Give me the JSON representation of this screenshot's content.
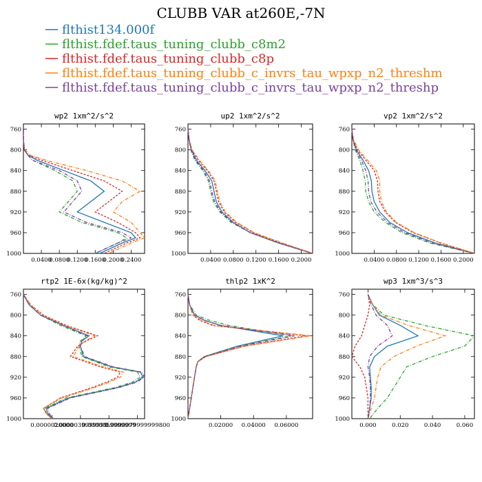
{
  "figure": {
    "title": "CLUBB VAR at260E,-7N"
  },
  "legend": [
    {
      "label": "flthist134.000f",
      "color": "#1f77b4"
    },
    {
      "label": "flthist.fdef.taus_tuning_clubb_c8m2",
      "color": "#2ca02c"
    },
    {
      "label": "flthist.fdef.taus_tuning_clubb_c8p",
      "color": "#d62728"
    },
    {
      "label": "flthist.fdef.taus_tuning_clubb_c_invrs_tau_wpxp_n2_threshm",
      "color": "#ff7f0e"
    },
    {
      "label": "flthist.fdef.taus_tuning_clubb_c_invrs_tau_wpxp_n2_threshp",
      "color": "#7b3f9e"
    }
  ],
  "chart_data": [
    {
      "type": "line",
      "title": "wp2  1xm^2/s^2",
      "xlim": [
        0,
        0.27
      ],
      "ylim": [
        1000,
        750
      ],
      "y_inverted": true,
      "x_ticks": [
        "0.0400",
        "0.0800",
        "0.1200",
        "0.1600",
        "0.2000",
        "0.2400"
      ],
      "x_tick_values": [
        0.04,
        0.08,
        0.12,
        0.16,
        0.2,
        0.24
      ],
      "y_ticks": [
        "760",
        "800",
        "840",
        "880",
        "920",
        "960",
        "1000"
      ],
      "y": [
        760,
        780,
        800,
        810,
        820,
        840,
        860,
        880,
        900,
        920,
        940,
        960,
        970,
        980,
        1000
      ],
      "series": [
        {
          "legend_index": 0,
          "x": [
            0.0,
            0.0,
            0.002,
            0.01,
            0.03,
            0.09,
            0.15,
            0.18,
            0.15,
            0.12,
            0.18,
            0.24,
            0.25,
            0.22,
            0.17
          ]
        },
        {
          "legend_index": 1,
          "x": [
            0.0,
            0.0,
            0.002,
            0.01,
            0.02,
            0.07,
            0.11,
            0.12,
            0.1,
            0.08,
            0.13,
            0.21,
            0.23,
            0.21,
            0.16
          ]
        },
        {
          "legend_index": 2,
          "x": [
            0.0,
            0.0,
            0.002,
            0.01,
            0.04,
            0.11,
            0.18,
            0.22,
            0.19,
            0.16,
            0.21,
            0.25,
            0.26,
            0.23,
            0.18
          ]
        },
        {
          "legend_index": 3,
          "x": [
            0.0,
            0.0,
            0.003,
            0.015,
            0.05,
            0.14,
            0.22,
            0.26,
            0.22,
            0.2,
            0.24,
            0.26,
            0.27,
            0.24,
            0.19
          ]
        },
        {
          "legend_index": 4,
          "x": [
            0.0,
            0.0,
            0.002,
            0.01,
            0.02,
            0.08,
            0.12,
            0.13,
            0.11,
            0.09,
            0.14,
            0.22,
            0.24,
            0.21,
            0.16
          ]
        }
      ]
    },
    {
      "type": "line",
      "title": "up2  1xm^2/s^2",
      "xlim": [
        0,
        0.22
      ],
      "ylim": [
        1000,
        750
      ],
      "y_inverted": true,
      "x_ticks": [
        "0.0400",
        "0.0800",
        "0.1200",
        "0.1600",
        "0.2000"
      ],
      "x_tick_values": [
        0.04,
        0.08,
        0.12,
        0.16,
        0.2
      ],
      "y_ticks": [
        "760",
        "800",
        "840",
        "880",
        "920",
        "960",
        "1000"
      ],
      "y": [
        760,
        780,
        800,
        820,
        840,
        860,
        880,
        900,
        920,
        940,
        960,
        980,
        1000
      ],
      "series": [
        {
          "legend_index": 0,
          "x": [
            0.0,
            0.002,
            0.006,
            0.015,
            0.03,
            0.042,
            0.046,
            0.05,
            0.06,
            0.08,
            0.11,
            0.16,
            0.22
          ]
        },
        {
          "legend_index": 1,
          "x": [
            0.0,
            0.002,
            0.005,
            0.012,
            0.026,
            0.036,
            0.04,
            0.045,
            0.056,
            0.076,
            0.11,
            0.16,
            0.22
          ]
        },
        {
          "legend_index": 2,
          "x": [
            0.0,
            0.002,
            0.007,
            0.018,
            0.034,
            0.046,
            0.05,
            0.054,
            0.064,
            0.084,
            0.115,
            0.165,
            0.22
          ]
        },
        {
          "legend_index": 3,
          "x": [
            0.0,
            0.002,
            0.007,
            0.02,
            0.036,
            0.048,
            0.052,
            0.056,
            0.066,
            0.086,
            0.117,
            0.167,
            0.22
          ]
        },
        {
          "legend_index": 4,
          "x": [
            0.0,
            0.002,
            0.005,
            0.013,
            0.028,
            0.038,
            0.042,
            0.047,
            0.058,
            0.078,
            0.11,
            0.16,
            0.22
          ]
        }
      ]
    },
    {
      "type": "line",
      "title": "vp2  1xm^2/s^2",
      "xlim": [
        0,
        0.22
      ],
      "ylim": [
        1000,
        750
      ],
      "y_inverted": true,
      "x_ticks": [
        "0.0400",
        "0.0800",
        "0.1200",
        "0.1600",
        "0.2000"
      ],
      "x_tick_values": [
        0.04,
        0.08,
        0.12,
        0.16,
        0.2
      ],
      "y_ticks": [
        "760",
        "800",
        "840",
        "880",
        "920",
        "960",
        "1000"
      ],
      "y": [
        760,
        780,
        800,
        820,
        840,
        860,
        880,
        900,
        920,
        940,
        960,
        980,
        1000
      ],
      "series": [
        {
          "legend_index": 0,
          "x": [
            0.0,
            0.002,
            0.008,
            0.02,
            0.03,
            0.035,
            0.036,
            0.04,
            0.05,
            0.068,
            0.1,
            0.15,
            0.22
          ]
        },
        {
          "legend_index": 1,
          "x": [
            0.0,
            0.002,
            0.006,
            0.014,
            0.02,
            0.024,
            0.025,
            0.03,
            0.04,
            0.06,
            0.09,
            0.14,
            0.22
          ]
        },
        {
          "legend_index": 2,
          "x": [
            0.0,
            0.002,
            0.01,
            0.025,
            0.04,
            0.046,
            0.047,
            0.05,
            0.06,
            0.078,
            0.11,
            0.16,
            0.22
          ]
        },
        {
          "legend_index": 3,
          "x": [
            0.0,
            0.003,
            0.012,
            0.028,
            0.044,
            0.05,
            0.05,
            0.053,
            0.062,
            0.08,
            0.112,
            0.16,
            0.22
          ]
        },
        {
          "legend_index": 4,
          "x": [
            0.0,
            0.002,
            0.007,
            0.017,
            0.025,
            0.029,
            0.03,
            0.034,
            0.045,
            0.064,
            0.095,
            0.145,
            0.22
          ]
        }
      ]
    },
    {
      "type": "line",
      "title": "rtp2  1E-6x(kg/kg)^2",
      "xlim": [
        0,
        8.5e-06
      ],
      "ylim": [
        1000,
        750
      ],
      "y_inverted": true,
      "x_ticks": [
        "0.0000020000",
        "0.0000039999999",
        "0.0000059999999",
        "0.0000079999999800"
      ],
      "x_tick_values": [
        2e-06,
        4e-06,
        6e-06,
        8e-06
      ],
      "y_ticks": [
        "760",
        "800",
        "840",
        "880",
        "920",
        "960",
        "1000"
      ],
      "y": [
        760,
        780,
        800,
        820,
        840,
        850,
        860,
        880,
        900,
        910,
        920,
        930,
        940,
        960,
        980,
        990,
        1000
      ],
      "series": [
        {
          "legend_index": 0,
          "x": [
            0.0,
            4e-07,
            1.2e-06,
            2.8e-06,
            4.6e-06,
            4.1e-06,
            4e-06,
            4.2e-06,
            6.2e-06,
            8.2e-06,
            8.4e-06,
            7.8e-06,
            6.6e-06,
            3.2e-06,
            1.6e-06,
            1.7e-06,
            2.1e-06
          ]
        },
        {
          "legend_index": 1,
          "x": [
            0.0,
            4e-07,
            1.2e-06,
            2.6e-06,
            4.4e-06,
            4e-06,
            3.9e-06,
            4.1e-06,
            6e-06,
            8e-06,
            8.2e-06,
            7.6e-06,
            6.4e-06,
            3e-06,
            1.5e-06,
            1.6e-06,
            2e-06
          ]
        },
        {
          "legend_index": 2,
          "x": [
            0.0,
            5e-07,
            1.4e-06,
            3e-06,
            5.2e-06,
            4.4e-06,
            3.8e-06,
            3.3e-06,
            5.4e-06,
            6.8e-06,
            6.6e-06,
            5.8e-06,
            4.8e-06,
            2.6e-06,
            1.4e-06,
            1.6e-06,
            2e-06
          ]
        },
        {
          "legend_index": 3,
          "x": [
            0.0,
            5e-07,
            1.3e-06,
            2.9e-06,
            5e-06,
            4.3e-06,
            3.9e-06,
            3.5e-06,
            5.6e-06,
            7e-06,
            6.8e-06,
            6e-06,
            5e-06,
            2.7e-06,
            1.4e-06,
            1.6e-06,
            2e-06
          ]
        },
        {
          "legend_index": 4,
          "x": [
            0.0,
            4e-07,
            1.2e-06,
            2.8e-06,
            4.5e-06,
            4.1e-06,
            4e-06,
            4.3e-06,
            6.3e-06,
            8.3e-06,
            8.5e-06,
            7.9e-06,
            6.7e-06,
            3.3e-06,
            1.7e-06,
            1.8e-06,
            2.1e-06
          ]
        }
      ]
    },
    {
      "type": "line",
      "title": "thlp2  1xK^2",
      "xlim": [
        0,
        0.076
      ],
      "ylim": [
        1000,
        750
      ],
      "y_inverted": true,
      "x_ticks": [
        "0.02000",
        "0.04000",
        "0.06000"
      ],
      "x_tick_values": [
        0.02,
        0.04,
        0.06
      ],
      "y_ticks": [
        "760",
        "800",
        "840",
        "880",
        "920",
        "960",
        "1000"
      ],
      "y": [
        760,
        780,
        800,
        810,
        820,
        840,
        860,
        880,
        890,
        900,
        920,
        940,
        960,
        980,
        1000
      ],
      "series": [
        {
          "legend_index": 0,
          "x": [
            0.0,
            0.001,
            0.004,
            0.01,
            0.02,
            0.058,
            0.03,
            0.01,
            0.006,
            0.005,
            0.004,
            0.003,
            0.002,
            0.001,
            0.0
          ]
        },
        {
          "legend_index": 1,
          "x": [
            0.0,
            0.001,
            0.005,
            0.013,
            0.025,
            0.063,
            0.031,
            0.01,
            0.006,
            0.005,
            0.004,
            0.003,
            0.002,
            0.001,
            0.0
          ]
        },
        {
          "legend_index": 2,
          "x": [
            0.0,
            0.001,
            0.003,
            0.007,
            0.015,
            0.072,
            0.034,
            0.011,
            0.006,
            0.005,
            0.004,
            0.003,
            0.002,
            0.001,
            0.0
          ]
        },
        {
          "legend_index": 3,
          "x": [
            0.0,
            0.001,
            0.003,
            0.008,
            0.016,
            0.075,
            0.035,
            0.011,
            0.006,
            0.005,
            0.004,
            0.003,
            0.002,
            0.001,
            0.0
          ]
        },
        {
          "legend_index": 4,
          "x": [
            0.0,
            0.001,
            0.004,
            0.01,
            0.02,
            0.065,
            0.032,
            0.01,
            0.006,
            0.005,
            0.004,
            0.003,
            0.002,
            0.001,
            0.0
          ]
        }
      ]
    },
    {
      "type": "line",
      "title": "wp3  1xm^3/s^3",
      "xlim": [
        -0.01,
        0.066
      ],
      "ylim": [
        1000,
        750
      ],
      "y_inverted": true,
      "x_ticks": [
        "0.000",
        "0.020",
        "0.040",
        "0.060"
      ],
      "x_tick_values": [
        0.0,
        0.02,
        0.04,
        0.06
      ],
      "y_ticks": [
        "760",
        "800",
        "840",
        "880",
        "920",
        "960",
        "1000"
      ],
      "y": [
        760,
        780,
        800,
        820,
        840,
        860,
        880,
        900,
        920,
        940,
        960,
        980,
        1000
      ],
      "series": [
        {
          "legend_index": 0,
          "x": [
            0.0,
            0.003,
            0.007,
            0.02,
            0.031,
            0.012,
            0.004,
            0.001,
            0.0015,
            0.002,
            0.002,
            0.001,
            0.0
          ]
        },
        {
          "legend_index": 1,
          "x": [
            0.0,
            0.003,
            0.01,
            0.035,
            0.066,
            0.06,
            0.04,
            0.024,
            0.02,
            0.016,
            0.012,
            0.006,
            0.001
          ]
        },
        {
          "legend_index": 2,
          "x": [
            0.0,
            0.001,
            0.0,
            -0.002,
            -0.004,
            -0.008,
            -0.01,
            -0.005,
            -0.002,
            -0.001,
            0.0,
            0.0,
            0.0
          ]
        },
        {
          "legend_index": 3,
          "x": [
            0.0,
            0.003,
            0.008,
            0.025,
            0.048,
            0.03,
            0.016,
            0.008,
            0.006,
            0.005,
            0.004,
            0.002,
            0.0
          ]
        },
        {
          "legend_index": 4,
          "x": [
            0.0,
            0.002,
            0.005,
            0.012,
            0.015,
            0.006,
            0.001,
            0.0,
            0.001,
            0.0015,
            0.0015,
            0.001,
            0.0
          ]
        }
      ]
    }
  ]
}
